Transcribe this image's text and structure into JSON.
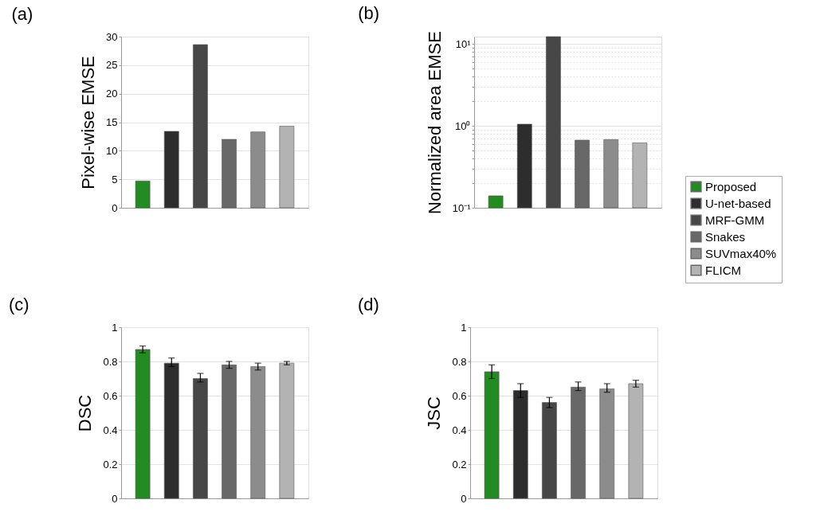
{
  "chart_data": [
    {
      "type": "bar",
      "title": "(a)",
      "ylabel": "Pixel-wise EMSE",
      "categories": [
        null
      ],
      "ylim": [
        0,
        30
      ],
      "yticks": [
        0,
        5,
        10,
        15,
        20,
        25,
        30
      ],
      "grid": "y",
      "series": [
        {
          "color": "#228b22",
          "values": [
            4.7
          ]
        },
        {
          "color": "#2d2d2d",
          "values": [
            13.4
          ]
        },
        {
          "color": "#474747",
          "values": [
            28.6
          ]
        },
        {
          "color": "#686868",
          "values": [
            12.0
          ]
        },
        {
          "color": "#8c8c8c",
          "values": [
            13.3
          ]
        },
        {
          "color": "#b3b3b3",
          "values": [
            14.3
          ]
        }
      ]
    },
    {
      "type": "bar",
      "title": "(b)",
      "ylabel": "Normalized area EMSE",
      "categories": [
        null
      ],
      "log": "y",
      "ylim": [
        0.1,
        12.3
      ],
      "grid": "y",
      "legend": "right",
      "yticks": [
        {
          "value": 0.1,
          "label": "10⁻¹"
        },
        {
          "value": 0.2,
          "label": null
        },
        {
          "value": 0.3,
          "label": null
        },
        {
          "value": 0.4,
          "label": null
        },
        {
          "value": 0.5,
          "label": null
        },
        {
          "value": 0.6,
          "label": null
        },
        {
          "value": 0.7,
          "label": null
        },
        {
          "value": 0.8,
          "label": null
        },
        {
          "value": 0.9,
          "label": null
        },
        {
          "value": 1,
          "label": "10⁰"
        },
        {
          "value": 2,
          "label": null
        },
        {
          "value": 3,
          "label": null
        },
        {
          "value": 4,
          "label": null
        },
        {
          "value": 5,
          "label": null
        },
        {
          "value": 6,
          "label": null
        },
        {
          "value": 7,
          "label": null
        },
        {
          "value": 8,
          "label": null
        },
        {
          "value": 9,
          "label": null
        },
        {
          "value": 10,
          "label": "10¹"
        }
      ],
      "series": [
        {
          "name": "Proposed",
          "color": "#228b22",
          "values": [
            0.14
          ]
        },
        {
          "name": "U-net-based",
          "color": "#2d2d2d",
          "values": [
            1.05
          ]
        },
        {
          "name": "MRF-GMM",
          "color": "#474747",
          "values": [
            12.3
          ]
        },
        {
          "name": "Snakes",
          "color": "#686868",
          "values": [
            0.67
          ]
        },
        {
          "name": "SUVmax40%",
          "color": "#8c8c8c",
          "values": [
            0.68
          ]
        },
        {
          "name": "FLICM",
          "color": "#b3b3b3",
          "values": [
            0.62
          ]
        }
      ]
    },
    {
      "type": "bar",
      "title": "(c)",
      "ylabel": "DSC",
      "categories": [
        null
      ],
      "ylim": [
        0,
        1
      ],
      "yticks": [
        0,
        0.2,
        0.4,
        0.6,
        0.8,
        1
      ],
      "grid": "y",
      "series": [
        {
          "color": "#228b22",
          "values": [
            0.87
          ],
          "errors": [
            0.02
          ]
        },
        {
          "color": "#2d2d2d",
          "values": [
            0.79
          ],
          "errors": [
            [
              0.77,
              0.82
            ]
          ]
        },
        {
          "color": "#474747",
          "values": [
            0.7
          ],
          "errors": [
            [
              0.68,
              0.73
            ]
          ]
        },
        {
          "color": "#686868",
          "values": [
            0.78
          ],
          "errors": [
            0.02
          ]
        },
        {
          "color": "#8c8c8c",
          "values": [
            0.77
          ],
          "errors": [
            0.02
          ]
        },
        {
          "color": "#b3b3b3",
          "values": [
            0.79
          ],
          "errors": [
            0.01
          ]
        }
      ]
    },
    {
      "type": "bar",
      "title": "(d)",
      "ylabel": "JSC",
      "categories": [
        null
      ],
      "ylim": [
        0,
        1
      ],
      "yticks": [
        0,
        0.2,
        0.4,
        0.6,
        0.8,
        1
      ],
      "grid": "y",
      "series": [
        {
          "color": "#228b22",
          "values": [
            0.74
          ],
          "errors": [
            0.04
          ]
        },
        {
          "color": "#2d2d2d",
          "values": [
            0.63
          ],
          "errors": [
            0.04
          ]
        },
        {
          "color": "#474747",
          "values": [
            0.56
          ],
          "errors": [
            0.03
          ]
        },
        {
          "color": "#686868",
          "values": [
            0.65
          ],
          "errors": [
            [
              0.63,
              0.68
            ]
          ]
        },
        {
          "color": "#8c8c8c",
          "values": [
            0.64
          ],
          "errors": [
            [
              0.62,
              0.67
            ]
          ]
        },
        {
          "color": "#b3b3b3",
          "values": [
            0.67
          ],
          "errors": [
            0.02
          ]
        }
      ]
    }
  ]
}
